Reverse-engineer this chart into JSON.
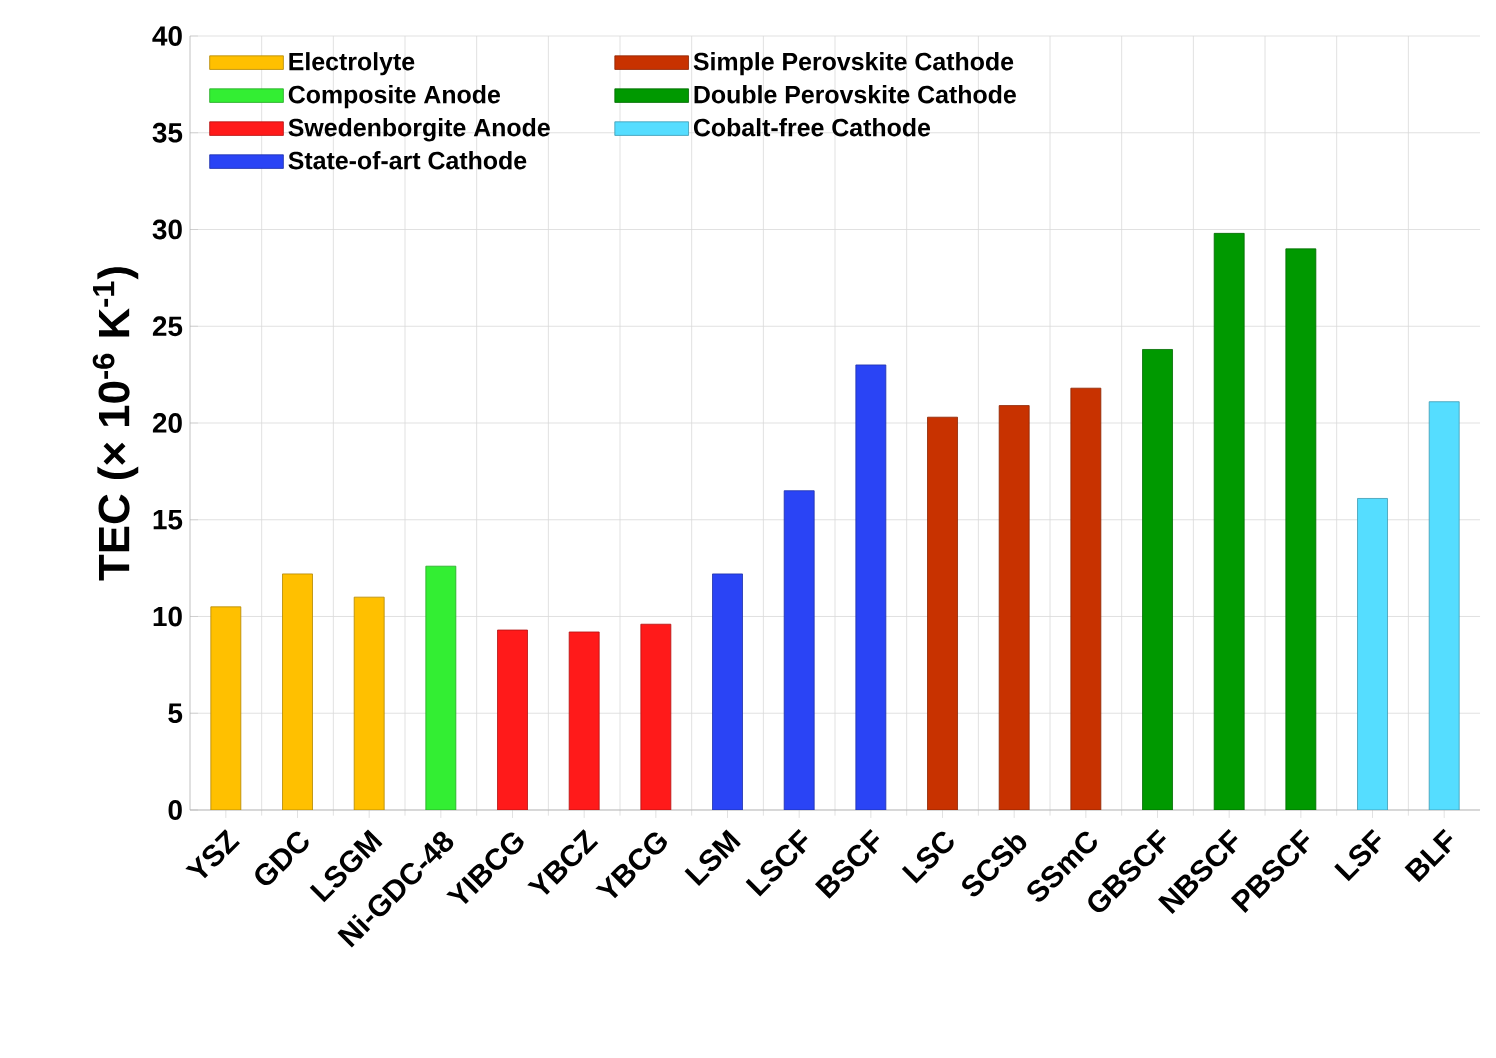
{
  "chart_data": {
    "type": "bar",
    "ylabel": "TEC (× 10$^{-6}$ K$^{-1}$)",
    "categories": [
      "YSZ",
      "GDC",
      "LSGM",
      "Ni-GDC-48",
      "YIBCG",
      "YBCZ",
      "YBCG",
      "LSM",
      "LSCF",
      "BSCF",
      "LSC",
      "SCSb",
      "SSmC",
      "GBSCF",
      "NBSCF",
      "PBSCF",
      "LSF",
      "BLF"
    ],
    "series": [
      {
        "name": "Electrolyte",
        "color": "#ffc000",
        "values": [
          10.5,
          12.2,
          11.0,
          null,
          null,
          null,
          null,
          null,
          null,
          null,
          null,
          null,
          null,
          null,
          null,
          null,
          null,
          null
        ]
      },
      {
        "name": "Composite Anode",
        "color": "#33ee33",
        "values": [
          null,
          null,
          null,
          12.6,
          null,
          null,
          null,
          null,
          null,
          null,
          null,
          null,
          null,
          null,
          null,
          null,
          null,
          null
        ]
      },
      {
        "name": "Swedenborgite Anode",
        "color": "#ff1a1a",
        "values": [
          null,
          null,
          null,
          null,
          9.3,
          9.2,
          9.6,
          null,
          null,
          null,
          null,
          null,
          null,
          null,
          null,
          null,
          null,
          null
        ]
      },
      {
        "name": "State-of-art Cathode",
        "color": "#2a44f5",
        "values": [
          null,
          null,
          null,
          null,
          null,
          null,
          null,
          12.2,
          16.5,
          23.0,
          null,
          null,
          null,
          null,
          null,
          null,
          null,
          null
        ]
      },
      {
        "name": "Simple Perovskite Cathode",
        "color": "#c83200",
        "values": [
          null,
          null,
          null,
          null,
          null,
          null,
          null,
          null,
          null,
          null,
          20.3,
          20.9,
          21.8,
          null,
          null,
          null,
          null,
          null
        ]
      },
      {
        "name": "Double Perovskite Cathode",
        "color": "#009900",
        "values": [
          null,
          null,
          null,
          null,
          null,
          null,
          null,
          null,
          null,
          null,
          null,
          null,
          null,
          23.8,
          29.8,
          29.0,
          null,
          null
        ]
      },
      {
        "name": "Cobalt-free Cathode",
        "color": "#55ddff",
        "values": [
          null,
          null,
          null,
          null,
          null,
          null,
          null,
          null,
          null,
          null,
          null,
          null,
          null,
          null,
          null,
          null,
          16.1,
          21.1
        ]
      }
    ],
    "ylim": [
      0,
      40
    ],
    "yticks": [
      0,
      5,
      10,
      15,
      20,
      25,
      30,
      35,
      40
    ],
    "grid": true,
    "legend": "top left"
  }
}
